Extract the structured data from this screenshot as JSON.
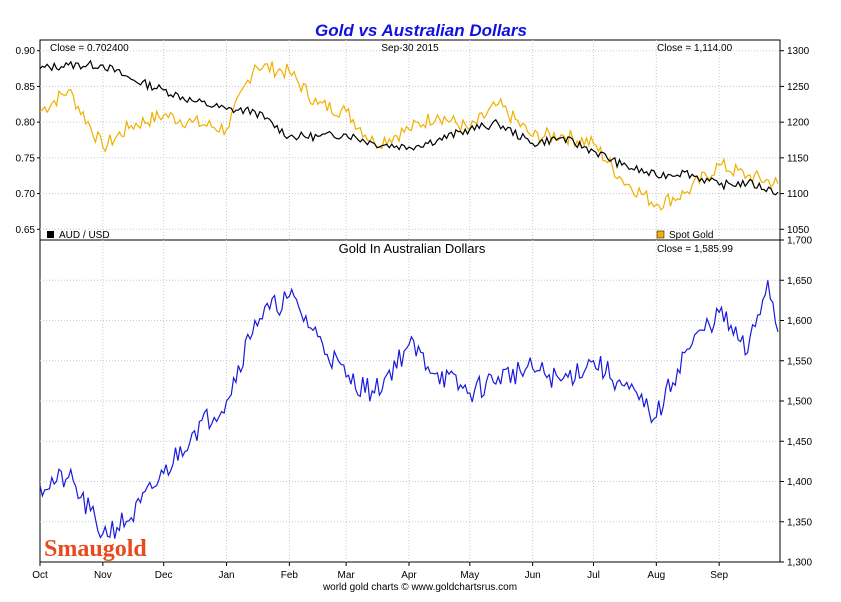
{
  "title": "Gold vs Australian Dollars",
  "footer": "world gold charts © www.goldchartsrus.com",
  "logo": "Smaugold",
  "colors": {
    "aud": "#000000",
    "gold": "#f0b000",
    "gold_aud": "#1a1adb",
    "title": "#1010e0"
  },
  "x_months": [
    "Oct",
    "Nov",
    "Dec",
    "Jan",
    "Feb",
    "Mar",
    "Apr",
    "May",
    "Jun",
    "Jul",
    "Aug",
    "Sep"
  ],
  "top_panel": {
    "close_left": "Close = 0.702400",
    "date": "Sep-30  2015",
    "close_right": "Close = 1,114.00",
    "legend_left": "AUD / USD",
    "legend_right": "Spot Gold",
    "left_ticks": [
      "0.90",
      "0.85",
      "0.80",
      "0.75",
      "0.70",
      "0.65"
    ],
    "right_ticks": [
      "1300",
      "1250",
      "1200",
      "1150",
      "1100",
      "1050"
    ]
  },
  "bottom_panel": {
    "title": "Gold In Australian Dollars",
    "close_right": "Close = 1,585.99",
    "right_ticks": [
      "1,700",
      "1,650",
      "1,600",
      "1,550",
      "1,500",
      "1,450",
      "1,400",
      "1,350",
      "1,300"
    ]
  },
  "chart_data": [
    {
      "type": "line",
      "title": "Gold vs Australian Dollars",
      "x": [
        "2014-10-01",
        "2014-10-15",
        "2014-11-01",
        "2014-11-15",
        "2014-12-01",
        "2014-12-15",
        "2015-01-01",
        "2015-01-15",
        "2015-02-01",
        "2015-02-15",
        "2015-03-01",
        "2015-03-15",
        "2015-04-01",
        "2015-04-15",
        "2015-05-01",
        "2015-05-15",
        "2015-06-01",
        "2015-06-15",
        "2015-07-01",
        "2015-07-15",
        "2015-08-01",
        "2015-08-15",
        "2015-09-01",
        "2015-09-15",
        "2015-09-30"
      ],
      "series": [
        {
          "name": "AUD / USD",
          "axis": "left",
          "ylim": [
            0.635,
            0.915
          ],
          "values": [
            0.875,
            0.88,
            0.88,
            0.86,
            0.845,
            0.83,
            0.818,
            0.815,
            0.78,
            0.78,
            0.783,
            0.77,
            0.765,
            0.775,
            0.79,
            0.798,
            0.77,
            0.778,
            0.76,
            0.74,
            0.725,
            0.73,
            0.712,
            0.715,
            0.702
          ]
        },
        {
          "name": "Spot Gold",
          "axis": "right",
          "ylim": [
            1035,
            1315
          ],
          "values": [
            1215,
            1245,
            1165,
            1195,
            1210,
            1200,
            1190,
            1280,
            1270,
            1225,
            1215,
            1170,
            1190,
            1210,
            1190,
            1225,
            1180,
            1182,
            1170,
            1120,
            1085,
            1100,
            1140,
            1125,
            1114
          ]
        }
      ]
    },
    {
      "type": "line",
      "title": "Gold In Australian Dollars",
      "x": [
        "2014-10-01",
        "2014-10-15",
        "2014-11-01",
        "2014-11-15",
        "2014-12-01",
        "2014-12-15",
        "2015-01-01",
        "2015-01-15",
        "2015-02-01",
        "2015-02-15",
        "2015-03-01",
        "2015-03-15",
        "2015-04-01",
        "2015-04-15",
        "2015-05-01",
        "2015-05-15",
        "2015-06-01",
        "2015-06-15",
        "2015-07-01",
        "2015-07-15",
        "2015-08-01",
        "2015-08-15",
        "2015-09-01",
        "2015-09-15",
        "2015-09-25",
        "2015-09-30"
      ],
      "series": [
        {
          "name": "Gold In Australian Dollars",
          "axis": "right",
          "ylim": [
            1300,
            1700
          ],
          "values": [
            1395,
            1405,
            1335,
            1355,
            1410,
            1460,
            1500,
            1600,
            1630,
            1580,
            1530,
            1510,
            1570,
            1535,
            1510,
            1530,
            1540,
            1525,
            1550,
            1520,
            1480,
            1560,
            1610,
            1560,
            1650,
            1586
          ]
        }
      ]
    }
  ]
}
